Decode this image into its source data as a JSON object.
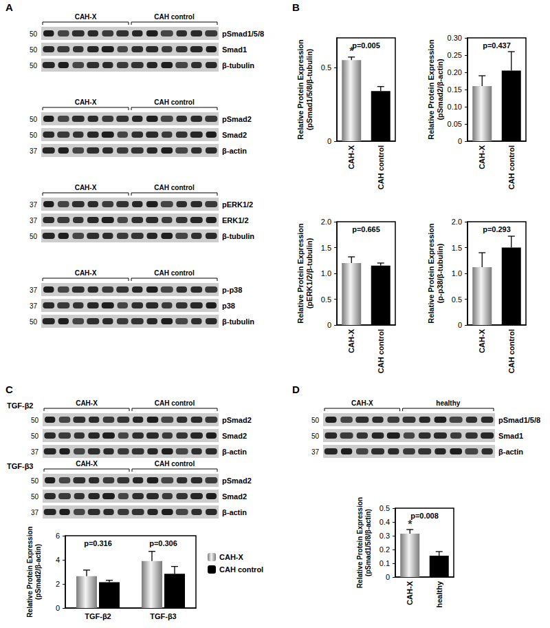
{
  "panel_labels": [
    "A",
    "B",
    "C",
    "D"
  ],
  "blots": {
    "A": [
      {
        "groups": [
          "CAH-X",
          "CAH control"
        ],
        "rows": [
          {
            "label": "pSmad1/5/8",
            "mw": 50
          },
          {
            "label": "Smad1",
            "mw": 50
          },
          {
            "label": "β-tubulin",
            "mw": 50
          }
        ]
      },
      {
        "groups": [
          "CAH-X",
          "CAH control"
        ],
        "rows": [
          {
            "label": "pSmad2",
            "mw": 50
          },
          {
            "label": "Smad2",
            "mw": 50
          },
          {
            "label": "β-actin",
            "mw": 37
          }
        ]
      },
      {
        "groups": [
          "CAH-X",
          "CAH control"
        ],
        "rows": [
          {
            "label": "pERK1/2",
            "mw": 37
          },
          {
            "label": "ERK1/2",
            "mw": 37
          },
          {
            "label": "β-tubulin",
            "mw": 50
          }
        ]
      },
      {
        "groups": [
          "CAH-X",
          "CAH control"
        ],
        "rows": [
          {
            "label": "p-p38",
            "mw": 37
          },
          {
            "label": "p38",
            "mw": 37
          },
          {
            "label": "β-tubulin",
            "mw": 50
          }
        ]
      }
    ],
    "C": [
      {
        "title": "TGF-β2",
        "groups": [
          "CAH-X",
          "CAH control"
        ],
        "rows": [
          {
            "label": "pSmad2",
            "mw": 50
          },
          {
            "label": "Smad2",
            "mw": 50
          },
          {
            "label": "β-actin",
            "mw": 37
          }
        ]
      },
      {
        "title": "TGF-β3",
        "groups": [
          "CAH-X",
          "CAH control"
        ],
        "rows": [
          {
            "label": "pSmad2",
            "mw": 50
          },
          {
            "label": "Smad2",
            "mw": 50
          },
          {
            "label": "β-actin",
            "mw": 37
          }
        ]
      }
    ],
    "D": [
      {
        "groups": [
          "CAH-X",
          "healthy"
        ],
        "rows": [
          {
            "label": "pSmad1/5/8",
            "mw": 50
          },
          {
            "label": "Smad1",
            "mw": 50
          },
          {
            "label": "β-actin",
            "mw": 37
          }
        ]
      }
    ]
  },
  "chart_data": [
    {
      "type": "bar",
      "categories": [
        "CAH-X",
        "CAH control"
      ],
      "values": [
        0.55,
        0.34
      ],
      "errors": [
        0.02,
        0.03
      ],
      "colors": [
        "#7a7a7a",
        "#000000"
      ],
      "y_label": "Relative Protein Expression\n(pSmad1/5/8/β-tubulin)",
      "ylim": [
        0,
        0.7
      ],
      "yticks": [
        0,
        0.5
      ],
      "annotations": [
        {
          "text": "p=0.005"
        }
      ],
      "marks": [
        {
          "text": "*",
          "category": "CAH-X"
        }
      ]
    },
    {
      "type": "bar",
      "categories": [
        "CAH-X",
        "CAH control"
      ],
      "values": [
        0.16,
        0.205
      ],
      "errors": [
        0.03,
        0.055
      ],
      "colors": [
        "#7a7a7a",
        "#000000"
      ],
      "y_label": "Relative Protein Expression\n(pSmad2/β-actin)",
      "ylim": [
        0,
        0.3
      ],
      "yticks": [
        0,
        0.05,
        {
          "value": 0.1,
          "label": "0.10"
        },
        0.15,
        {
          "value": 0.2,
          "label": "0.20"
        },
        0.25,
        {
          "value": 0.3,
          "label": "0.30"
        }
      ],
      "annotations": [
        {
          "text": "p=0.437"
        }
      ]
    },
    {
      "type": "bar",
      "categories": [
        "CAH-X",
        "CAH control"
      ],
      "values": [
        1.2,
        1.15
      ],
      "errors": [
        0.12,
        0.05
      ],
      "colors": [
        "#7a7a7a",
        "#000000"
      ],
      "y_label": "Relative Protein Expression\n(pERK1/2/β-tubulin)",
      "ylim": [
        0,
        2
      ],
      "yticks": [
        0,
        0.5,
        {
          "value": 1,
          "label": "1.0"
        },
        1.5,
        {
          "value": 2,
          "label": "2.0"
        }
      ],
      "annotations": [
        {
          "text": "p=0.665"
        }
      ]
    },
    {
      "type": "bar",
      "categories": [
        "CAH-X",
        "CAH control"
      ],
      "values": [
        1.12,
        1.5
      ],
      "errors": [
        0.28,
        0.22
      ],
      "colors": [
        "#7a7a7a",
        "#000000"
      ],
      "y_label": "Relative Protein Expression\n(p-p38/β-tubulin)",
      "ylim": [
        0,
        2
      ],
      "yticks": [
        0,
        0.5,
        {
          "value": 1,
          "label": "1.0"
        },
        1.5,
        {
          "value": 2,
          "label": "2.0"
        }
      ],
      "annotations": [
        {
          "text": "p=0.293"
        }
      ]
    },
    {
      "type": "bar",
      "categories": [
        "TGF-β2",
        "TGF-β3"
      ],
      "series": [
        {
          "name": "CAH-X",
          "color": "#7a7a7a",
          "values": [
            2.65,
            3.9
          ],
          "errors": [
            0.5,
            0.8
          ]
        },
        {
          "name": "CAH control",
          "color": "#000000",
          "values": [
            2.15,
            2.85
          ],
          "errors": [
            0.15,
            0.6
          ]
        }
      ],
      "legend": "right",
      "y_label": "Relative Protein Expression\n(pSmad2/β-actin)",
      "ylim": [
        0,
        6
      ],
      "yticks": [
        0,
        2,
        4,
        6
      ],
      "annotations": [
        {
          "text": "p=0.316",
          "category": "TGF-β2"
        },
        {
          "text": "p=0.306",
          "category": "TGF-β3"
        }
      ]
    },
    {
      "type": "bar",
      "categories": [
        "CAH-X",
        "healthy"
      ],
      "values": [
        0.315,
        0.155
      ],
      "errors": [
        0.03,
        0.03
      ],
      "colors": [
        "#7a7a7a",
        "#000000"
      ],
      "y_label": "Relative Protein Expression\n(pSmad1/5/8/β-actin)",
      "ylim": [
        0,
        0.5
      ],
      "yticks": [
        0,
        0.1,
        0.2,
        0.3,
        0.4,
        0.5
      ],
      "annotations": [
        {
          "text": "p=0.008"
        }
      ],
      "marks": [
        {
          "text": "*",
          "category": "CAH-X"
        }
      ]
    }
  ]
}
